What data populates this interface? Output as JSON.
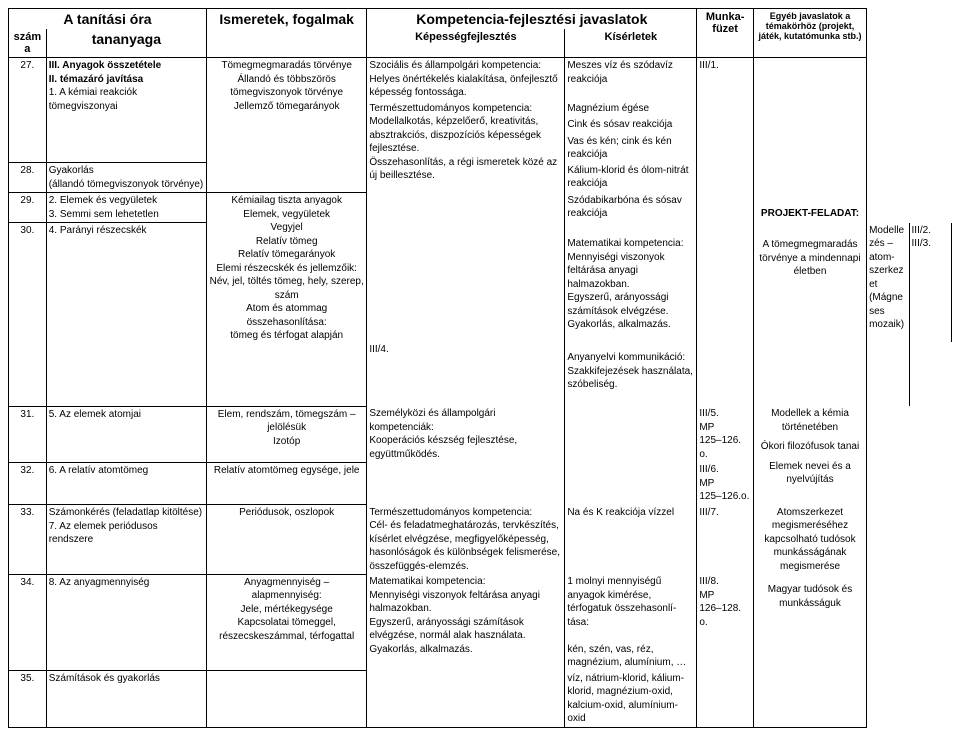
{
  "header": {
    "col1_top": "A tanítási óra",
    "col1_r1": "száma",
    "col1_r2": "tananyaga",
    "col2": "Ismeretek, fogalmak",
    "col3_top": "Kompetencia-fejlesztési javaslatok",
    "col3_r1": "Képességfejlesztés",
    "col3_r2": "Kísérletek",
    "col4": "Munka-füzet",
    "col5": "Egyéb javaslatok a témakörhöz (projekt, játék, kutatómunka stb.)"
  },
  "col3_blocks": [
    "Tömegmegmaradás törvénye\nÁllandó és többszörös tömegviszonyok törvénye\nJellemző tömegarányok",
    "Kémiailag tiszta anyagok\nElemek, vegyületek\nVegyjel\nRelatív tömeg\nRelatív tömegarányok\nElemi részecskék és jellemzőik:\nNév, jel, töltés tömeg, hely, szerep, szám\nAtom és atommag összehasonlítása:\ntömeg és térfogat alapján",
    "Elem, rendszám, tömegszám – jelölésük\nIzotóp",
    "Relatív atomtömeg egysége, jele",
    "Periódusok, oszlopok",
    "Anyagmennyiség – alapmennyiség:\nJele, mértékegysége\nKapcsolatai tömeggel, részecskeszámmal, térfogattal"
  ],
  "col4_blocks": [
    "Szociális és állampolgári kompetencia:\nHelyes önértékelés kialakítása, önfejlesztő képesség fontossága.",
    "Természettudományos kompetencia:\nModellalkotás, képzelőerő, kreativitás, absztrakciós, diszpozíciós képességek fejlesztése.\nÖsszehasonlítás, a régi ismeretek közé az új beillesztése.",
    "Matematikai kompetencia:\nMennyiségi viszonyok feltárása anyagi halmazokban.\nEgyszerű, arányossági számítások elvégzése.\nGyakorlás, alkalmazás.",
    "Anyanyelvi kommunikáció:\nSzakkifejezések használata, szóbeliség.",
    "Személyközi és állampolgári kompetenciák:\nKooperációs készség fejlesztése, együttműködés.",
    "Természettudományos kompetencia:\nCél- és feladatmeghatározás, tervkészítés, kísérlet elvégzése, megfigyelőképesség, hasonlóságok és különbségek felismerése, összefüggés-elemzés.",
    "Matematikai kompetencia:\nMennyiségi viszonyok feltárása anyagi halmazokban.\nEgyszerű, arányossági számítások elvégzése, normál alak használata.\nGyakorlás, alkalmazás."
  ],
  "col5_blocks": [
    "Meszes víz és szódavíz reakciója",
    "Magnézium égése",
    "Cink és sósav reakciója",
    "Vas és kén; cink és kén reakciója",
    "Kálium-klorid és ólom-nitrát reakciója",
    "Szódabikarbóna és sósav reakciója",
    "Modellezés – atom-szerkezet\n(Mágneses mozaik)",
    "Na és K reakciója vízzel",
    "1 molnyi mennyiségű anyagok kimérése, térfogatuk összehasonlí-tása:\n\nkén, szén, vas, réz, magnézium, alumínium, …",
    "víz, nátrium-klorid, kálium-klorid, magnézium-oxid, kalcium-oxid, alumínium-oxid"
  ],
  "col6_blocks": [
    "III/1.",
    "III/2.",
    "III/3.",
    "III/4.",
    "III/5.\nMP\n125–126. o.",
    "III/6.\nMP\n125–126.o.",
    "III/7.",
    "III/8.\nMP\n126–128. o."
  ],
  "col7_blocks": [
    "PROJEKT-FELADAT:",
    "A tömegmegmaradás törvénye a mindennapi életben",
    "Modellek a kémia történetében",
    "Ókori filozófusok tanai",
    "Elemek nevei és a nyelvújítás",
    "Atomszerkezet megismeréséhez kapcsolható tudósok munkásságának megismerése",
    "Magyar tudósok és munkásságuk"
  ],
  "rows": {
    "r27n": "27.",
    "r27t": "III. Anyagok összetétele\nII. témazáró javítása\n1. A kémiai reakciók tömegviszonyai",
    "r28n": "28.",
    "r28t": "Gyakorlás\n(állandó tömegviszonyok törvénye)",
    "r29n": "29.",
    "r29t": "2. Elemek és vegyületek\n3. Semmi sem lehetetlen",
    "r30n": "30.",
    "r30t": "4. Parányi részecskék",
    "r31n": "31.",
    "r31t": "5. Az elemek atomjai",
    "r32n": "32.",
    "r32t": "6. A relatív atomtömeg",
    "r33n": "33.",
    "r33t": "Számonkérés (feladatlap kitöltése)\n7. Az elemek periódusos rendszere",
    "r34n": "34.",
    "r34t": "8. Az anyagmennyiség",
    "r35n": "35.",
    "r35t": "Számítások és gyakorlás"
  }
}
